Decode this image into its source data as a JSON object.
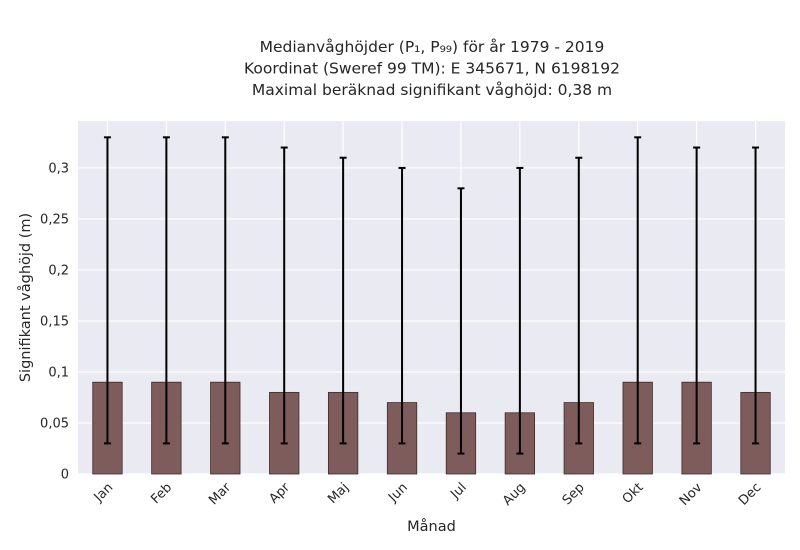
{
  "chart_data": {
    "type": "bar",
    "title_lines": [
      "Medianvåghöjder (P₁, P₉₉) för år 1979 - 2019",
      "Koordinat (Sweref 99 TM): E 345671, N 6198192",
      "Maximal beräknad signifikant våghöjd: 0,38 m"
    ],
    "xlabel": "Månad",
    "ylabel": "Signifikant våghöjd (m)",
    "categories": [
      "Jan",
      "Feb",
      "Mar",
      "Apr",
      "Maj",
      "Jun",
      "Jul",
      "Aug",
      "Sep",
      "Okt",
      "Nov",
      "Dec"
    ],
    "values": [
      0.09,
      0.09,
      0.09,
      0.08,
      0.08,
      0.07,
      0.06,
      0.06,
      0.07,
      0.09,
      0.09,
      0.08
    ],
    "error_low": [
      0.03,
      0.03,
      0.03,
      0.03,
      0.03,
      0.03,
      0.02,
      0.02,
      0.03,
      0.03,
      0.03,
      0.03
    ],
    "error_high": [
      0.33,
      0.33,
      0.33,
      0.32,
      0.31,
      0.3,
      0.28,
      0.3,
      0.31,
      0.33,
      0.32,
      0.32
    ],
    "yticks": [
      0,
      0.05,
      0.1,
      0.15,
      0.2,
      0.25,
      0.3
    ],
    "ytick_labels": [
      "0",
      "0,05",
      "0,1",
      "0,15",
      "0,2",
      "0,25",
      "0,3"
    ],
    "ylim": [
      0,
      0.346
    ],
    "grid": true,
    "colors": {
      "bar": "#7e5c5c",
      "bar_edge": "#3d2b2b",
      "error": "#000000",
      "plot_bg": "#eaeaf2",
      "grid": "#ffffff"
    }
  }
}
